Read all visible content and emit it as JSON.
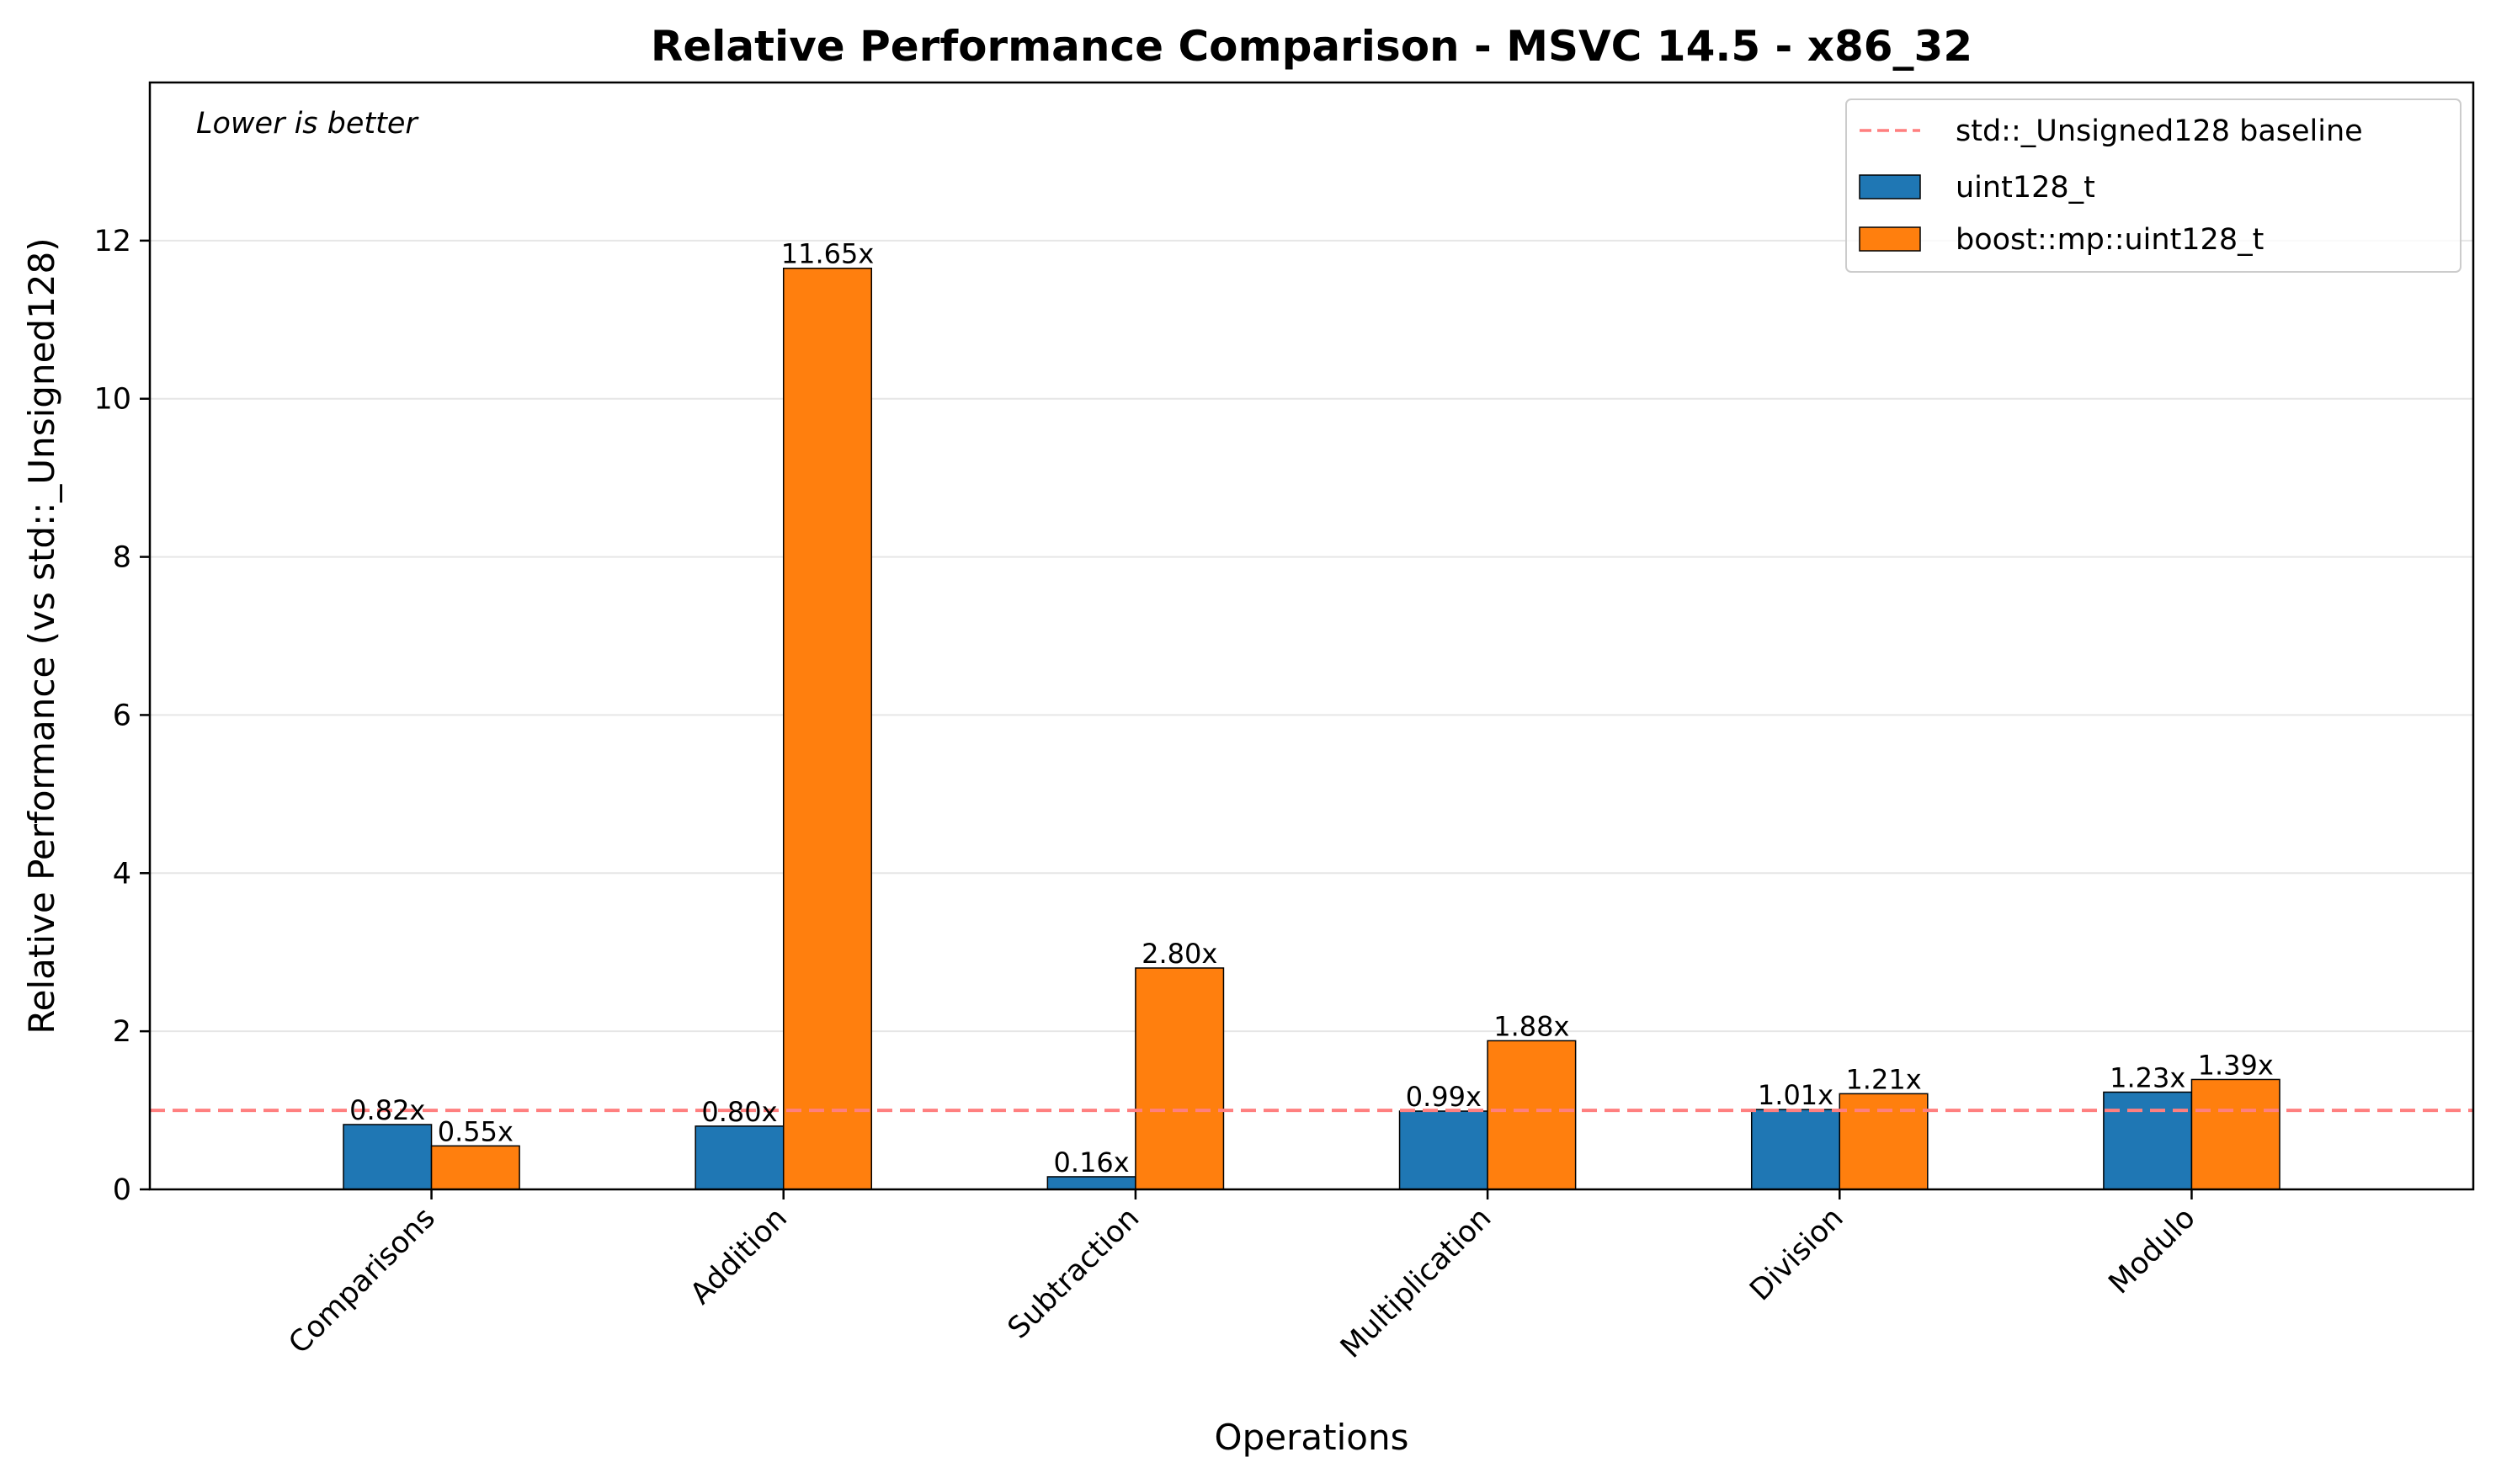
{
  "chart_data": {
    "type": "bar",
    "title": "Relative Performance Comparison - MSVC 14.5 - x86_32",
    "xlabel": "Operations",
    "ylabel": "Relative Performance (vs std::_Unsigned128)",
    "categories": [
      "Comparisons",
      "Addition",
      "Subtraction",
      "Multiplication",
      "Division",
      "Modulo"
    ],
    "series": [
      {
        "name": "uint128_t",
        "values": [
          0.82,
          0.8,
          0.16,
          0.99,
          1.01,
          1.23
        ],
        "labels": [
          "0.82x",
          "0.80x",
          "0.16x",
          "0.99x",
          "1.01x",
          "1.23x"
        ],
        "color": "#1f77b4"
      },
      {
        "name": "boost::mp::uint128_t",
        "values": [
          0.55,
          11.65,
          2.8,
          1.88,
          1.21,
          1.39
        ],
        "labels": [
          "0.55x",
          "11.65x",
          "2.80x",
          "1.88x",
          "1.21x",
          "1.39x"
        ],
        "color": "#ff7f0e"
      }
    ],
    "baseline": {
      "name": "std::_Unsigned128 baseline",
      "value": 1.0,
      "color": "#ff7f7f",
      "style": "dashed"
    },
    "ylim": [
      0,
      14
    ],
    "yticks": [
      0,
      2,
      4,
      6,
      8,
      10,
      12
    ],
    "grid": "y",
    "legend_position": "top-right",
    "annotation": "Lower is better"
  }
}
